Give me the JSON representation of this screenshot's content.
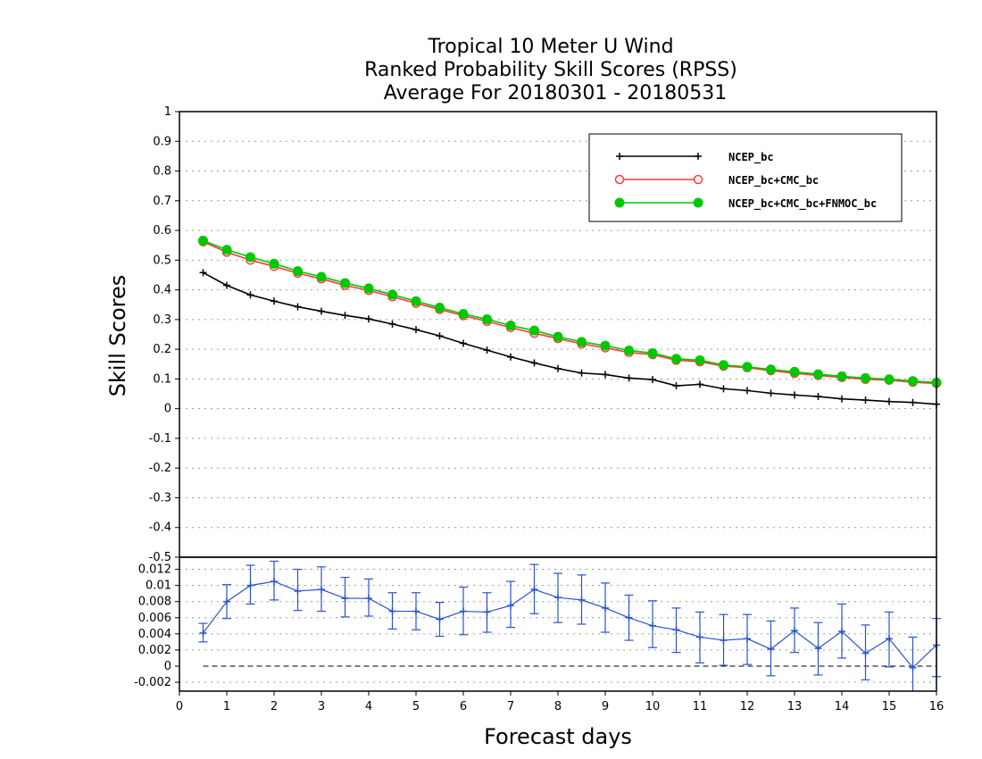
{
  "chart_data": [
    {
      "type": "line",
      "title_lines": [
        "Tropical 10 Meter U Wind",
        "Ranked Probability Skill Scores (RPSS)",
        "Average For 20180301 - 20180531"
      ],
      "ylabel": "Skill Scores",
      "ylim": [
        -0.5,
        1.0
      ],
      "yticks": [
        "-0.5",
        "-0.4",
        "-0.3",
        "-0.2",
        "-0.1",
        "0",
        "0.1",
        "0.2",
        "0.3",
        "0.4",
        "0.5",
        "0.6",
        "0.7",
        "0.8",
        "0.9",
        "1"
      ],
      "xlim": [
        0,
        16
      ],
      "grid": true,
      "legend_placement": "top-right",
      "x": [
        0.5,
        1,
        1.5,
        2,
        2.5,
        3,
        3.5,
        4,
        4.5,
        5,
        5.5,
        6,
        6.5,
        7,
        7.5,
        8,
        8.5,
        9,
        9.5,
        10,
        10.5,
        11,
        11.5,
        12,
        12.5,
        13,
        13.5,
        14,
        14.5,
        15,
        15.5,
        16
      ],
      "series": [
        {
          "name": "NCEP_bc",
          "color": "#000000",
          "marker": "plus",
          "values": [
            0.458,
            0.415,
            0.383,
            0.362,
            0.343,
            0.328,
            0.314,
            0.302,
            0.285,
            0.266,
            0.245,
            0.22,
            0.197,
            0.174,
            0.154,
            0.135,
            0.12,
            0.115,
            0.103,
            0.098,
            0.077,
            0.082,
            0.067,
            0.061,
            0.052,
            0.046,
            0.041,
            0.033,
            0.029,
            0.024,
            0.021,
            0.015
          ]
        },
        {
          "name": "NCEP_bc+CMC_bc",
          "color": "#ff3b3b",
          "marker": "open-circle",
          "values": [
            0.562,
            0.527,
            0.5,
            0.479,
            0.456,
            0.437,
            0.415,
            0.398,
            0.377,
            0.355,
            0.334,
            0.313,
            0.294,
            0.273,
            0.254,
            0.236,
            0.218,
            0.205,
            0.189,
            0.182,
            0.163,
            0.158,
            0.143,
            0.138,
            0.128,
            0.119,
            0.112,
            0.105,
            0.099,
            0.096,
            0.089,
            0.085
          ]
        },
        {
          "name": "NCEP_bc+CMC_bc+FNMOC_bc",
          "color": "#00c800",
          "marker": "filled-circle",
          "values": [
            0.566,
            0.535,
            0.51,
            0.488,
            0.463,
            0.444,
            0.423,
            0.405,
            0.384,
            0.362,
            0.34,
            0.319,
            0.301,
            0.28,
            0.263,
            0.242,
            0.225,
            0.212,
            0.196,
            0.187,
            0.168,
            0.163,
            0.147,
            0.141,
            0.132,
            0.124,
            0.116,
            0.109,
            0.103,
            0.099,
            0.093,
            0.088
          ]
        }
      ]
    },
    {
      "type": "line",
      "xlabel": "Forecast days",
      "xticks": [
        "0",
        "1",
        "2",
        "3",
        "4",
        "5",
        "6",
        "7",
        "8",
        "9",
        "10",
        "11",
        "12",
        "13",
        "14",
        "15",
        "16"
      ],
      "yticks": [
        "-0.002",
        "0",
        "0.002",
        "0.004",
        "0.006",
        "0.008",
        "0.01",
        "0.012"
      ],
      "ylim": [
        -0.0031,
        0.0135
      ],
      "xlim": [
        0,
        16
      ],
      "grid": true,
      "zero_line": true,
      "x": [
        0.5,
        1,
        1.5,
        2,
        2.5,
        3,
        3.5,
        4,
        4.5,
        5,
        5.5,
        6,
        6.5,
        7,
        7.5,
        8,
        8.5,
        9,
        9.5,
        10,
        10.5,
        11,
        11.5,
        12,
        12.5,
        13,
        13.5,
        14,
        14.5,
        15,
        15.5,
        16
      ],
      "series": [
        {
          "color": "#2a52d0",
          "marker": "plus",
          "values": [
            0.0041,
            0.008,
            0.01,
            0.0105,
            0.0093,
            0.0095,
            0.0084,
            0.0084,
            0.0068,
            0.0068,
            0.0058,
            0.0068,
            0.0067,
            0.0075,
            0.0095,
            0.0085,
            0.0082,
            0.0072,
            0.006,
            0.005,
            0.0045,
            0.0036,
            0.0032,
            0.0034,
            0.0021,
            0.0044,
            0.0022,
            0.0043,
            0.0016,
            0.0034,
            -0.0002,
            0.0026
          ],
          "error_low": [
            0.003,
            0.0059,
            0.0077,
            0.0082,
            0.0069,
            0.0068,
            0.0061,
            0.0062,
            0.0046,
            0.0045,
            0.0037,
            0.0039,
            0.0042,
            0.0048,
            0.0065,
            0.0054,
            0.0052,
            0.0042,
            0.0032,
            0.0023,
            0.0017,
            0.0004,
            0.0001,
            0.0002,
            -0.0012,
            0.0017,
            -0.0011,
            0.001,
            -0.0017,
            -0.0001,
            -0.0038,
            -0.0013
          ],
          "error_high": [
            0.0053,
            0.0101,
            0.0125,
            0.013,
            0.012,
            0.0123,
            0.011,
            0.0108,
            0.0091,
            0.0091,
            0.0079,
            0.0098,
            0.0091,
            0.0105,
            0.0126,
            0.0115,
            0.0113,
            0.0103,
            0.0088,
            0.0081,
            0.0072,
            0.0067,
            0.0064,
            0.0064,
            0.0056,
            0.0072,
            0.0054,
            0.0077,
            0.0051,
            0.0067,
            0.0036,
            0.0059
          ]
        }
      ]
    }
  ]
}
